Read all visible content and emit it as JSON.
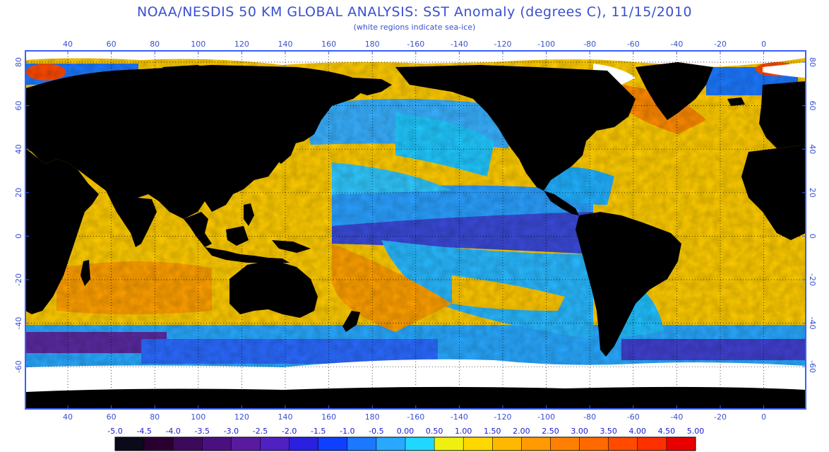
{
  "title": "NOAA/NESDIS 50 KM GLOBAL ANALYSIS: SST Anomaly (degrees C), 11/15/2010",
  "subtitle": "(white regions indicate sea-ice)",
  "chart_data": {
    "type": "heatmap",
    "variable": "SST Anomaly",
    "units": "degrees C",
    "date": "11/15/2010",
    "x_tick_labels": [
      "40",
      "60",
      "80",
      "100",
      "120",
      "140",
      "160",
      "180",
      "-160",
      "-140",
      "-120",
      "-100",
      "-80",
      "-60",
      "-40",
      "-20",
      "0"
    ],
    "y_tick_labels": [
      "80",
      "60",
      "40",
      "20",
      "0",
      "-20",
      "-40",
      "-60"
    ],
    "colorbar": {
      "labels": [
        "-5.0",
        "-4.5",
        "-4.0",
        "-3.5",
        "-3.0",
        "-2.5",
        "-2.0",
        "-1.5",
        "-1.0",
        "-0.5",
        "0.00",
        "0.50",
        "1.00",
        "1.50",
        "2.00",
        "2.50",
        "3.00",
        "3.50",
        "4.00",
        "4.50",
        "5.00"
      ],
      "colors": [
        "#0a0a1a",
        "#2a0030",
        "#3c0a5a",
        "#4a1080",
        "#5a1aa0",
        "#5020c0",
        "#2a20e0",
        "#1040ff",
        "#1c78ff",
        "#28a8ff",
        "#20d8ff",
        "#f0f010",
        "#ffd800",
        "#ffb800",
        "#ff9a00",
        "#ff8000",
        "#ff6a00",
        "#ff4a00",
        "#ff3000",
        "#e80000"
      ]
    },
    "colors": {
      "land": "#000000",
      "sea_ice": "#ffffff",
      "frame": "#3a5fff",
      "grid": "#000000"
    }
  }
}
